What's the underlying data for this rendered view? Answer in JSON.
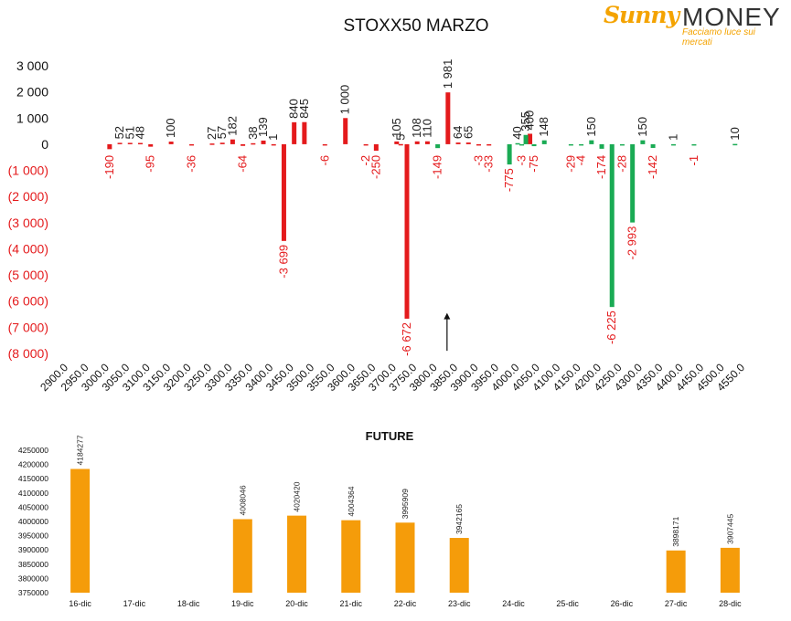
{
  "logo": {
    "brand_script": "Sunny",
    "brand_word": "MONEY",
    "tagline": "Facciamo luce sui mercati",
    "color": "#f4a300"
  },
  "chart_data": [
    {
      "type": "bar",
      "title": "STOXX50 MARZO",
      "ylim": [
        -8000,
        3000
      ],
      "y_ticks": [
        3000,
        2000,
        1000,
        0,
        -1000,
        -2000,
        -3000,
        -4000,
        -5000,
        -6000,
        -7000,
        -8000
      ],
      "y_tick_labels": [
        "3 000",
        "2 000",
        "1 000",
        "0",
        "(1 000)",
        "(2 000)",
        "(3 000)",
        "(4 000)",
        "(5 000)",
        "(6 000)",
        "(7 000)",
        "(8 000)"
      ],
      "x_ticks": [
        2900,
        2950,
        3000,
        3050,
        3100,
        3150,
        3200,
        3250,
        3300,
        3350,
        3400,
        3450,
        3500,
        3550,
        3600,
        3650,
        3700,
        3750,
        3800,
        3850,
        3900,
        3950,
        4000,
        4050,
        4100,
        4150,
        4200,
        4250,
        4300,
        4350,
        4400,
        4450,
        4500,
        4550
      ],
      "x_tick_labels": [
        "2900.0",
        "2950.0",
        "3000.0",
        "3050.0",
        "3100.0",
        "3150.0",
        "3200.0",
        "3250.0",
        "3300.0",
        "3350.0",
        "3400.0",
        "3450.0",
        "3500.0",
        "3550.0",
        "3600.0",
        "3650.0",
        "3700.0",
        "3750.0",
        "3800.0",
        "3850.0",
        "3900.0",
        "3950.0",
        "4000.0",
        "4050.0",
        "4100.0",
        "4150.0",
        "4200.0",
        "4250.0",
        "4300.0",
        "4350.0",
        "4400.0",
        "4450.0",
        "4500.0",
        "4550.0"
      ],
      "series": [
        {
          "color": "#e41a1c",
          "points": [
            {
              "x": 3000,
              "y": -190,
              "label": "-190"
            },
            {
              "x": 3025,
              "y": 52,
              "label": "52"
            },
            {
              "x": 3050,
              "y": 51,
              "label": "51"
            },
            {
              "x": 3075,
              "y": 48,
              "label": "48"
            },
            {
              "x": 3100,
              "y": -95,
              "label": "-95"
            },
            {
              "x": 3150,
              "y": 100,
              "label": "100"
            },
            {
              "x": 3200,
              "y": -36,
              "label": "-36"
            },
            {
              "x": 3250,
              "y": 27,
              "label": "27"
            },
            {
              "x": 3275,
              "y": 57,
              "label": "57"
            },
            {
              "x": 3300,
              "y": 182,
              "label": "182"
            },
            {
              "x": 3325,
              "y": -64,
              "label": "-64"
            },
            {
              "x": 3350,
              "y": 38,
              "label": "38"
            },
            {
              "x": 3375,
              "y": 139,
              "label": "139"
            },
            {
              "x": 3400,
              "y": 1,
              "label": "1"
            },
            {
              "x": 3425,
              "y": -3699,
              "label": "-3 699"
            },
            {
              "x": 3450,
              "y": 840,
              "label": "840"
            },
            {
              "x": 3475,
              "y": 845,
              "label": "845"
            },
            {
              "x": 3525,
              "y": -6,
              "label": "-6"
            },
            {
              "x": 3575,
              "y": 1000,
              "label": "1 000"
            },
            {
              "x": 3625,
              "y": -2,
              "label": "-2"
            },
            {
              "x": 3650,
              "y": -250,
              "label": "-250"
            },
            {
              "x": 3700,
              "y": 105,
              "label": "105"
            },
            {
              "x": 3710,
              "y": 5,
              "label": "5"
            },
            {
              "x": 3725,
              "y": -6672,
              "label": "-6 672"
            },
            {
              "x": 3750,
              "y": 108,
              "label": "108"
            },
            {
              "x": 3775,
              "y": 110,
              "label": "110"
            },
            {
              "x": 3825,
              "y": 1981,
              "label": "1 981"
            },
            {
              "x": 3850,
              "y": 64,
              "label": "64"
            },
            {
              "x": 3875,
              "y": 65,
              "label": "65"
            },
            {
              "x": 3900,
              "y": -3,
              "label": "-3"
            },
            {
              "x": 3925,
              "y": -33,
              "label": "-33"
            },
            {
              "x": 4025,
              "y": 400,
              "label": "400"
            }
          ]
        },
        {
          "color": "#1aab54",
          "points": [
            {
              "x": 3800,
              "y": -149,
              "label": "-149"
            },
            {
              "x": 3975,
              "y": -775,
              "label": "-775"
            },
            {
              "x": 3995,
              "y": 40,
              "label": "40"
            },
            {
              "x": 4005,
              "y": -3,
              "label": "-3"
            },
            {
              "x": 4015,
              "y": 355,
              "label": "355"
            },
            {
              "x": 4035,
              "y": -75,
              "label": "-75"
            },
            {
              "x": 4060,
              "y": 148,
              "label": "148"
            },
            {
              "x": 4125,
              "y": -29,
              "label": "-29"
            },
            {
              "x": 4150,
              "y": -4,
              "label": "-4"
            },
            {
              "x": 4175,
              "y": 150,
              "label": "150"
            },
            {
              "x": 4200,
              "y": -174,
              "label": "-174"
            },
            {
              "x": 4225,
              "y": -6225,
              "label": "-6 225"
            },
            {
              "x": 4250,
              "y": -28,
              "label": "-28"
            },
            {
              "x": 4275,
              "y": -2993,
              "label": "-2 993"
            },
            {
              "x": 4300,
              "y": 150,
              "label": "150"
            },
            {
              "x": 4325,
              "y": -142,
              "label": "-142"
            },
            {
              "x": 4375,
              "y": 1,
              "label": "1"
            },
            {
              "x": 4425,
              "y": -1,
              "label": "-1"
            },
            {
              "x": 4525,
              "y": 10,
              "label": "10"
            }
          ]
        }
      ],
      "pos_label_color": "#222222",
      "neg_label_color": "#e41a1c",
      "annotation": {
        "type": "arrow",
        "x": 3825,
        "from_y": -7900,
        "to_y": -6450
      }
    },
    {
      "type": "bar",
      "title": "FUTURE",
      "color": "#f59c0a",
      "ylim": [
        3750000,
        4250000
      ],
      "y_ticks": [
        4250000,
        4200000,
        4150000,
        4100000,
        4050000,
        4000000,
        3950000,
        3900000,
        3850000,
        3800000,
        3750000
      ],
      "y_tick_labels": [
        "4250000",
        "4200000",
        "4150000",
        "4100000",
        "4050000",
        "4000000",
        "3950000",
        "3900000",
        "3850000",
        "3800000",
        "3750000"
      ],
      "categories": [
        "16-dic",
        "17-dic",
        "18-dic",
        "19-dic",
        "20-dic",
        "21-dic",
        "22-dic",
        "23-dic",
        "24-dic",
        "25-dic",
        "26-dic",
        "27-dic",
        "28-dic"
      ],
      "values": [
        4184277,
        null,
        null,
        4008046,
        4020420,
        4004364,
        3995909,
        3942165,
        null,
        null,
        null,
        3898171,
        3907445
      ],
      "value_labels": [
        "4184277",
        "",
        "",
        "4008046",
        "4020420",
        "4004364",
        "3995909",
        "3942165",
        "",
        "",
        "",
        "3898171",
        "3907445"
      ]
    }
  ]
}
